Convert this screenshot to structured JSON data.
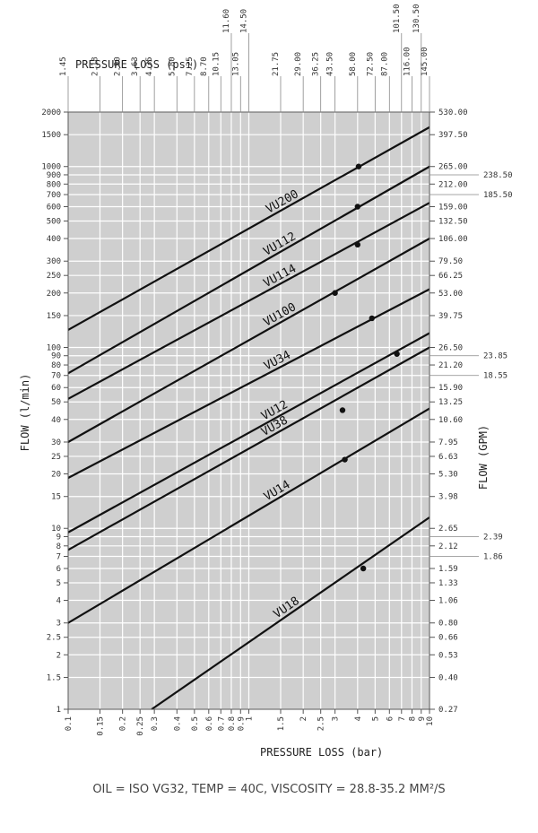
{
  "chart_data": {
    "type": "line",
    "scale": "log-log",
    "xlabel": "PRESSURE LOSS (bar)",
    "x2label": "PRESSURE LOSS (psi)",
    "ylabel": "FLOW (l/min)",
    "y2label": "FLOW (GPM)",
    "xlim": [
      0.1,
      10
    ],
    "ylim": [
      1,
      2000
    ],
    "grid": true,
    "x_ticks": [
      {
        "v": 0.1,
        "label": "0.1"
      },
      {
        "v": 0.15,
        "label": "0.15"
      },
      {
        "v": 0.2,
        "label": "0.2"
      },
      {
        "v": 0.25,
        "label": "0.25"
      },
      {
        "v": 0.3,
        "label": "0.3"
      },
      {
        "v": 0.4,
        "label": "0.4"
      },
      {
        "v": 0.5,
        "label": "0.5"
      },
      {
        "v": 0.6,
        "label": "0.6"
      },
      {
        "v": 0.7,
        "label": "0.7"
      },
      {
        "v": 0.8,
        "label": "0.8"
      },
      {
        "v": 0.9,
        "label": "0.9"
      },
      {
        "v": 1,
        "label": "1"
      },
      {
        "v": 1.5,
        "label": "1.5"
      },
      {
        "v": 2,
        "label": "2"
      },
      {
        "v": 2.5,
        "label": "2.5"
      },
      {
        "v": 3,
        "label": "3"
      },
      {
        "v": 4,
        "label": "4"
      },
      {
        "v": 5,
        "label": "5"
      },
      {
        "v": 6,
        "label": "6"
      },
      {
        "v": 7,
        "label": "7"
      },
      {
        "v": 8,
        "label": "8"
      },
      {
        "v": 9,
        "label": "9"
      },
      {
        "v": 10,
        "label": "10"
      }
    ],
    "x2_ticks": [
      {
        "v": 0.1,
        "label": "1.45"
      },
      {
        "v": 0.15,
        "label": "2.18"
      },
      {
        "v": 0.2,
        "label": "2.90"
      },
      {
        "v": 0.25,
        "label": "3.63"
      },
      {
        "v": 0.3,
        "label": "4.35"
      },
      {
        "v": 0.4,
        "label": "5.80"
      },
      {
        "v": 0.5,
        "label": "7.25"
      },
      {
        "v": 0.6,
        "label": "8.70"
      },
      {
        "v": 0.7,
        "label": "10.15"
      },
      {
        "v": 0.8,
        "label": "11.60"
      },
      {
        "v": 0.9,
        "label": "13.05"
      },
      {
        "v": 1,
        "label": "14.50"
      },
      {
        "v": 1.5,
        "label": "21.75"
      },
      {
        "v": 2,
        "label": "29.00"
      },
      {
        "v": 2.5,
        "label": "36.25"
      },
      {
        "v": 3,
        "label": "43.50"
      },
      {
        "v": 4,
        "label": "58.00"
      },
      {
        "v": 5,
        "label": "72.50"
      },
      {
        "v": 6,
        "label": "87.00"
      },
      {
        "v": 7,
        "label": "101.50"
      },
      {
        "v": 8,
        "label": "116.00"
      },
      {
        "v": 9,
        "label": "130.50"
      },
      {
        "v": 10,
        "label": "145.00"
      }
    ],
    "y_ticks": [
      {
        "v": 2000,
        "label": "2000"
      },
      {
        "v": 1500,
        "label": "1500"
      },
      {
        "v": 1000,
        "label": "1000"
      },
      {
        "v": 900,
        "label": "900"
      },
      {
        "v": 800,
        "label": "800"
      },
      {
        "v": 700,
        "label": "700"
      },
      {
        "v": 600,
        "label": "600"
      },
      {
        "v": 500,
        "label": "500"
      },
      {
        "v": 400,
        "label": "400"
      },
      {
        "v": 300,
        "label": "300"
      },
      {
        "v": 250,
        "label": "250"
      },
      {
        "v": 200,
        "label": "200"
      },
      {
        "v": 150,
        "label": "150"
      },
      {
        "v": 100,
        "label": "100"
      },
      {
        "v": 90,
        "label": "90"
      },
      {
        "v": 80,
        "label": "80"
      },
      {
        "v": 70,
        "label": "70"
      },
      {
        "v": 60,
        "label": "60"
      },
      {
        "v": 50,
        "label": "50"
      },
      {
        "v": 40,
        "label": "40"
      },
      {
        "v": 30,
        "label": "30"
      },
      {
        "v": 25,
        "label": "25"
      },
      {
        "v": 20,
        "label": "20"
      },
      {
        "v": 15,
        "label": "15"
      },
      {
        "v": 10,
        "label": "10"
      },
      {
        "v": 9,
        "label": "9"
      },
      {
        "v": 8,
        "label": "8"
      },
      {
        "v": 7,
        "label": "7"
      },
      {
        "v": 6,
        "label": "6"
      },
      {
        "v": 5,
        "label": "5"
      },
      {
        "v": 4,
        "label": "4"
      },
      {
        "v": 3,
        "label": "3"
      },
      {
        "v": 2.5,
        "label": "2.5"
      },
      {
        "v": 2,
        "label": "2"
      },
      {
        "v": 1.5,
        "label": "1.5"
      },
      {
        "v": 1,
        "label": "1"
      }
    ],
    "y2_ticks": [
      {
        "v": 2000,
        "label": "530.00",
        "side": "near"
      },
      {
        "v": 1500,
        "label": "397.50",
        "side": "near"
      },
      {
        "v": 1000,
        "label": "265.00",
        "side": "near"
      },
      {
        "v": 900,
        "label": "238.50",
        "side": "far"
      },
      {
        "v": 800,
        "label": "212.00",
        "side": "near"
      },
      {
        "v": 700,
        "label": "185.50",
        "side": "far"
      },
      {
        "v": 600,
        "label": "159.00",
        "side": "near"
      },
      {
        "v": 500,
        "label": "132.50",
        "side": "near"
      },
      {
        "v": 400,
        "label": "106.00",
        "side": "near"
      },
      {
        "v": 300,
        "label": "79.50",
        "side": "near"
      },
      {
        "v": 250,
        "label": "66.25",
        "side": "near"
      },
      {
        "v": 200,
        "label": "53.00",
        "side": "near"
      },
      {
        "v": 150,
        "label": "39.75",
        "side": "near"
      },
      {
        "v": 100,
        "label": "26.50",
        "side": "near"
      },
      {
        "v": 90,
        "label": "23.85",
        "side": "far"
      },
      {
        "v": 80,
        "label": "21.20",
        "side": "near"
      },
      {
        "v": 70,
        "label": "18.55",
        "side": "far"
      },
      {
        "v": 60,
        "label": "15.90",
        "side": "near"
      },
      {
        "v": 50,
        "label": "13.25",
        "side": "near"
      },
      {
        "v": 40,
        "label": "10.60",
        "side": "near"
      },
      {
        "v": 30,
        "label": "7.95",
        "side": "near"
      },
      {
        "v": 25,
        "label": "6.63",
        "side": "near"
      },
      {
        "v": 20,
        "label": "5.30",
        "side": "near"
      },
      {
        "v": 15,
        "label": "3.98",
        "side": "near"
      },
      {
        "v": 10,
        "label": "2.65",
        "side": "near"
      },
      {
        "v": 9,
        "label": "2.39",
        "side": "far"
      },
      {
        "v": 8,
        "label": "2.12",
        "side": "near"
      },
      {
        "v": 7,
        "label": "1.86",
        "side": "far"
      },
      {
        "v": 6,
        "label": "1.59",
        "side": "near"
      },
      {
        "v": 5,
        "label": "1.33",
        "side": "near"
      },
      {
        "v": 4,
        "label": "1.06",
        "side": "near"
      },
      {
        "v": 3,
        "label": "0.80",
        "side": "near"
      },
      {
        "v": 2.5,
        "label": "0.66",
        "side": "near"
      },
      {
        "v": 2,
        "label": "0.53",
        "side": "near"
      },
      {
        "v": 1.5,
        "label": "0.40",
        "side": "near"
      },
      {
        "v": 1,
        "label": "0.27",
        "side": "near"
      }
    ],
    "series": [
      {
        "name": "VU200",
        "x": [
          0.1,
          10
        ],
        "y": [
          125,
          1650
        ],
        "marker": {
          "x": 4.05,
          "y": 1000
        },
        "label_at": 1.6
      },
      {
        "name": "VU112",
        "x": [
          0.1,
          10
        ],
        "y": [
          72,
          1000
        ],
        "marker": {
          "x": 4.0,
          "y": 600
        },
        "label_at": 1.55
      },
      {
        "name": "VU114",
        "x": [
          0.1,
          10
        ],
        "y": [
          52,
          630
        ],
        "marker": {
          "x": 4.0,
          "y": 370
        },
        "label_at": 1.55
      },
      {
        "name": "VU100",
        "x": [
          0.1,
          10
        ],
        "y": [
          30,
          400
        ],
        "marker": {
          "x": 3.0,
          "y": 200
        },
        "label_at": 1.55
      },
      {
        "name": "VU34",
        "x": [
          0.1,
          10
        ],
        "y": [
          19,
          210
        ],
        "marker": {
          "x": 4.8,
          "y": 145
        },
        "label_at": 1.5
      },
      {
        "name": "VU12",
        "x": [
          0.1,
          10
        ],
        "y": [
          9.5,
          120
        ],
        "marker": {
          "x": 6.6,
          "y": 92
        },
        "label_at": 1.45
      },
      {
        "name": "VU38",
        "x": [
          0.1,
          10
        ],
        "y": [
          7.6,
          100
        ],
        "marker": {
          "x": 3.3,
          "y": 45
        },
        "label_at": 1.45
      },
      {
        "name": "VU14",
        "x": [
          0.1,
          10
        ],
        "y": [
          3.0,
          46
        ],
        "marker": {
          "x": 3.4,
          "y": 24
        },
        "label_at": 1.5
      },
      {
        "name": "VU18",
        "x": [
          0.29,
          10
        ],
        "y": [
          1.0,
          11.5
        ],
        "marker": {
          "x": 4.3,
          "y": 6.0
        },
        "label_at": 1.7
      }
    ]
  },
  "footnote": "OIL = ISO VG32, TEMP = 40C, VISCOSITY = 28.8-35.2 MM²/S"
}
